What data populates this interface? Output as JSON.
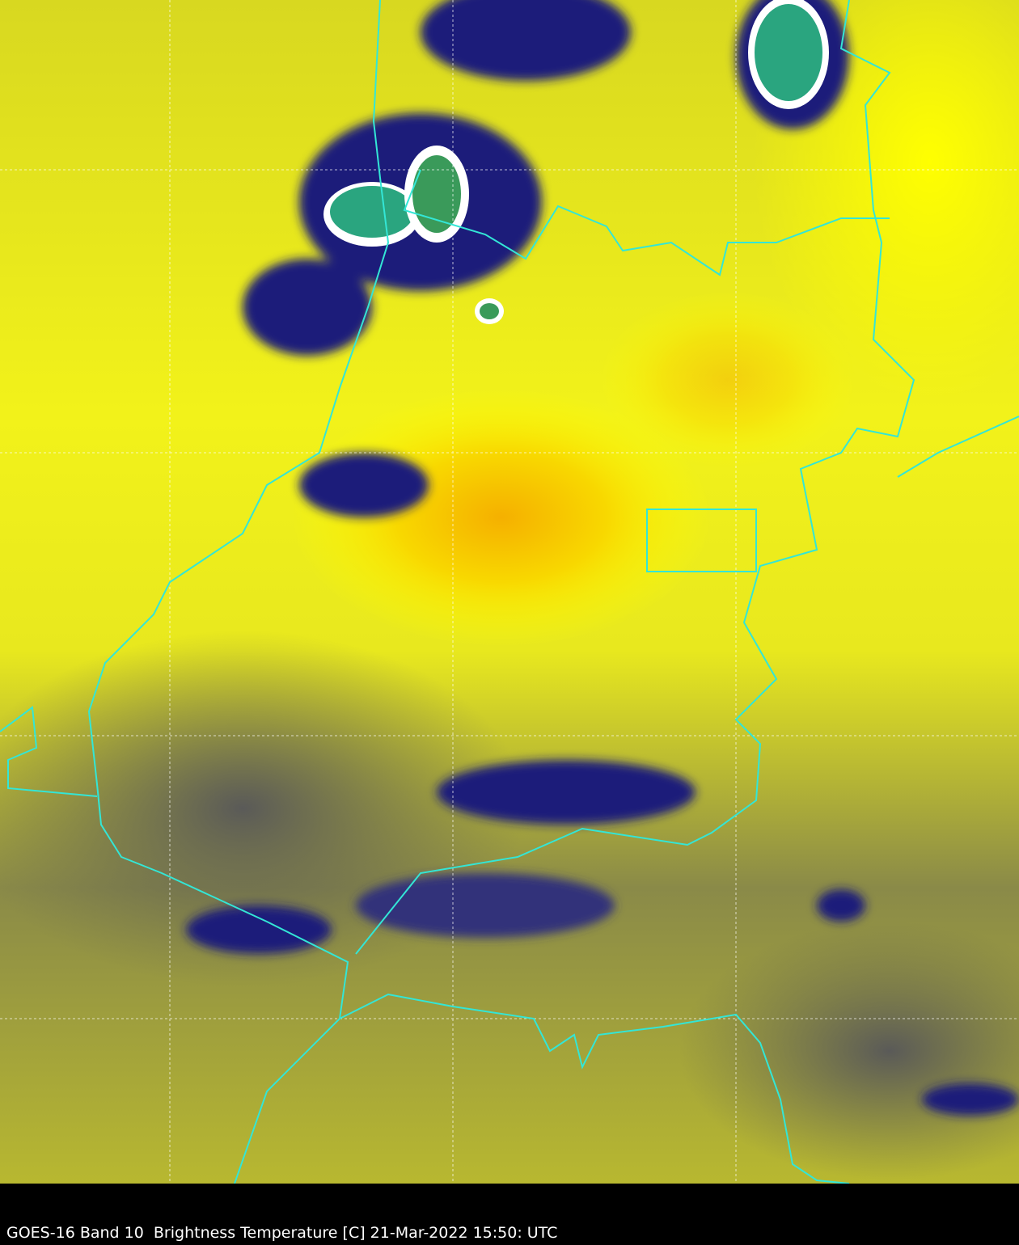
{
  "caption": "GOES-16 Band 10  Brightness Temperature [C] 21-Mar-2022 15:50: UTC",
  "colors": {
    "background": "#000000",
    "warm": "#ffff00",
    "warmest": "#f5b800",
    "mid": "#bdbd2a",
    "cool": "#6b6b52",
    "cold": "#1a1a7a",
    "coldest": "#2aa57f",
    "borders": "#33e6d6",
    "grid": "#ffffff"
  }
}
